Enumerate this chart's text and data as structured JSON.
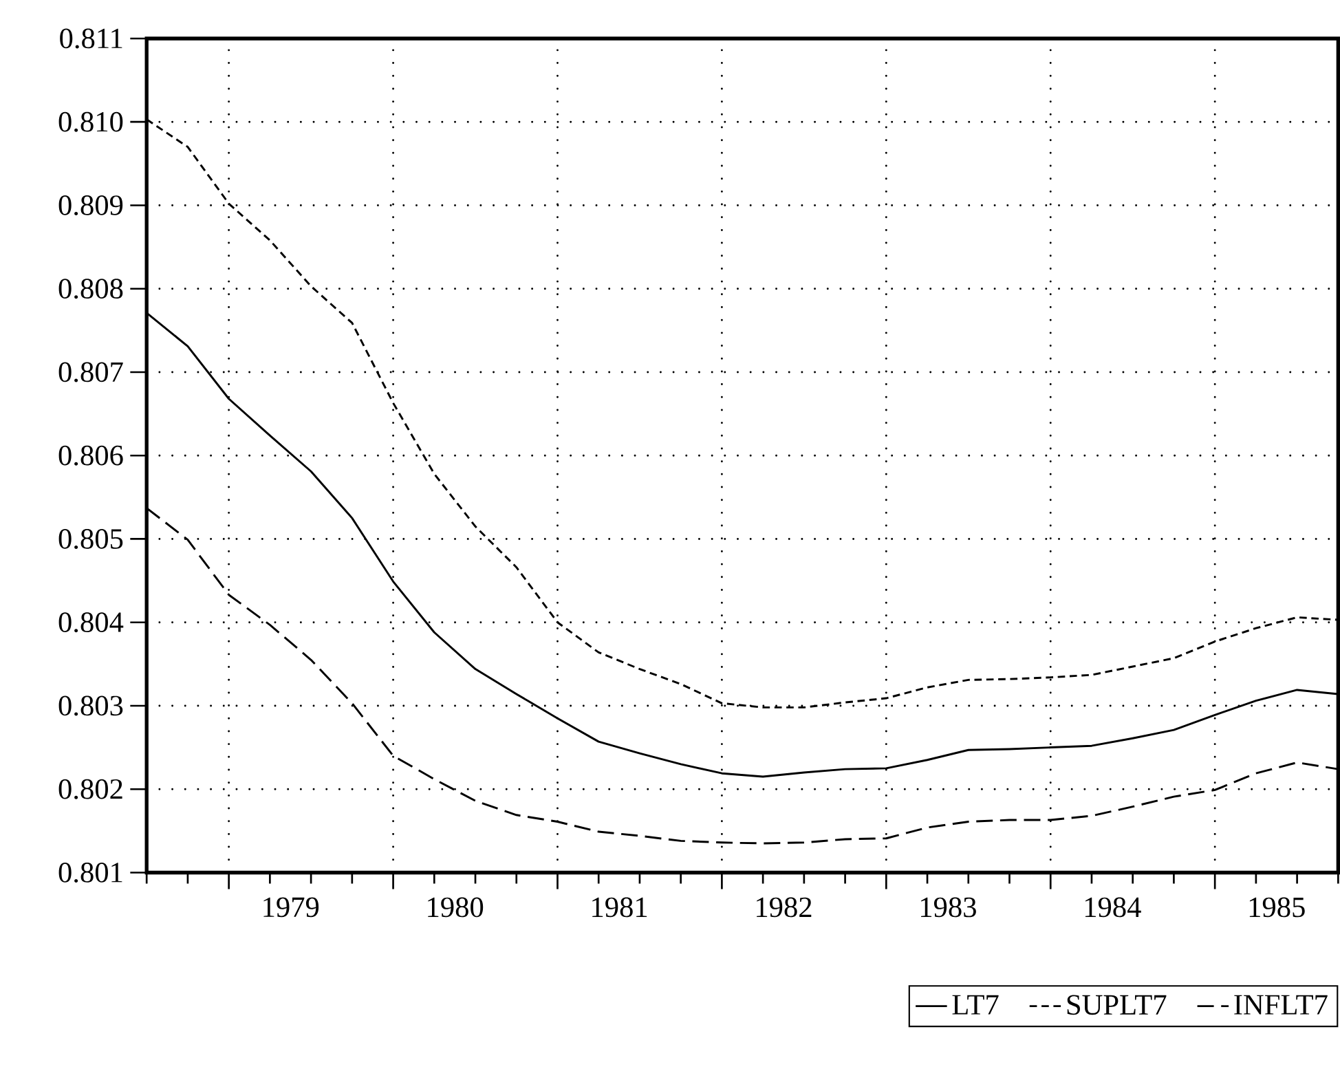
{
  "chart_data": {
    "type": "line",
    "x": [
      1978.5,
      1978.75,
      1979,
      1979.25,
      1979.5,
      1979.75,
      1980,
      1980.25,
      1980.5,
      1980.75,
      1981,
      1981.25,
      1981.5,
      1981.75,
      1982,
      1982.25,
      1982.5,
      1982.75,
      1983,
      1983.25,
      1983.5,
      1983.75,
      1984,
      1984.25,
      1984.5,
      1984.75,
      1985,
      1985.25,
      1985.5,
      1985.75
    ],
    "series": [
      {
        "name": "LT7",
        "color": "#000000",
        "line_style": "solid",
        "values": [
          0.80771,
          0.80731,
          0.80668,
          0.80624,
          0.80581,
          0.80525,
          0.80449,
          0.80388,
          0.80344,
          0.80314,
          0.80285,
          0.80257,
          0.80243,
          0.8023,
          0.80219,
          0.80215,
          0.8022,
          0.80224,
          0.80225,
          0.80235,
          0.80247,
          0.80248,
          0.8025,
          0.80252,
          0.80261,
          0.80271,
          0.80289,
          0.80306,
          0.80319,
          0.80314
        ]
      },
      {
        "name": "SUPLT7",
        "color": "#000000",
        "line_style": "dashed",
        "values": [
          0.81003,
          0.8097,
          0.80902,
          0.80858,
          0.80803,
          0.80759,
          0.80663,
          0.80578,
          0.80515,
          0.80466,
          0.804,
          0.80364,
          0.80344,
          0.80326,
          0.80303,
          0.80298,
          0.80298,
          0.80304,
          0.80309,
          0.80322,
          0.80331,
          0.80332,
          0.80334,
          0.80337,
          0.80347,
          0.80357,
          0.80377,
          0.80393,
          0.80406,
          0.80403
        ]
      },
      {
        "name": "INFLT7",
        "color": "#000000",
        "line_style": "dashed",
        "values": [
          0.80537,
          0.80499,
          0.80433,
          0.80397,
          0.80355,
          0.80303,
          0.8024,
          0.80212,
          0.80186,
          0.80169,
          0.80161,
          0.80149,
          0.80144,
          0.80138,
          0.80136,
          0.80135,
          0.80136,
          0.8014,
          0.80141,
          0.80154,
          0.80161,
          0.80163,
          0.80163,
          0.80168,
          0.80179,
          0.80191,
          0.80199,
          0.80219,
          0.80232,
          0.80224
        ]
      }
    ],
    "xlim": [
      1978.5,
      1985.75
    ],
    "xticks": [
      {
        "value": 1978.5,
        "label": null
      },
      {
        "value": 1978.75,
        "label": null
      },
      {
        "value": 1979,
        "label": null
      },
      {
        "value": 1979.25,
        "label": null
      },
      {
        "value": 1979.5,
        "label": null
      },
      {
        "value": 1979.75,
        "label": null
      },
      {
        "value": 1980,
        "label": null
      },
      {
        "value": 1980.25,
        "label": null
      },
      {
        "value": 1980.5,
        "label": null
      },
      {
        "value": 1980.75,
        "label": null
      },
      {
        "value": 1981,
        "label": null
      },
      {
        "value": 1981.25,
        "label": null
      },
      {
        "value": 1981.5,
        "label": null
      },
      {
        "value": 1981.75,
        "label": null
      },
      {
        "value": 1982,
        "label": null
      },
      {
        "value": 1982.25,
        "label": null
      },
      {
        "value": 1982.5,
        "label": null
      },
      {
        "value": 1982.75,
        "label": null
      },
      {
        "value": 1983,
        "label": null
      },
      {
        "value": 1983.25,
        "label": null
      },
      {
        "value": 1983.5,
        "label": null
      },
      {
        "value": 1983.75,
        "label": null
      },
      {
        "value": 1984,
        "label": null
      },
      {
        "value": 1984.25,
        "label": null
      },
      {
        "value": 1984.5,
        "label": null
      },
      {
        "value": 1984.75,
        "label": null
      },
      {
        "value": 1985,
        "label": null
      },
      {
        "value": 1985.25,
        "label": null
      },
      {
        "value": 1985.5,
        "label": null
      },
      {
        "value": 1985.75,
        "label": null
      },
      {
        "value": 1979.375,
        "label": "1979"
      },
      {
        "value": 1980.375,
        "label": "1980"
      },
      {
        "value": 1981.375,
        "label": "1981"
      },
      {
        "value": 1982.375,
        "label": "1982"
      },
      {
        "value": 1983.375,
        "label": "1983"
      },
      {
        "value": 1984.375,
        "label": "1984"
      },
      {
        "value": 1985.375,
        "label": "1985"
      }
    ],
    "ylim": [
      0.801,
      0.811
    ],
    "yticks": [
      0.801,
      0.802,
      0.803,
      0.804,
      0.805,
      0.806,
      0.807,
      0.808,
      0.809,
      {
        "value": 0.81,
        "label": "0.810"
      },
      0.811
    ],
    "grid": true,
    "legend": "bottom right"
  }
}
